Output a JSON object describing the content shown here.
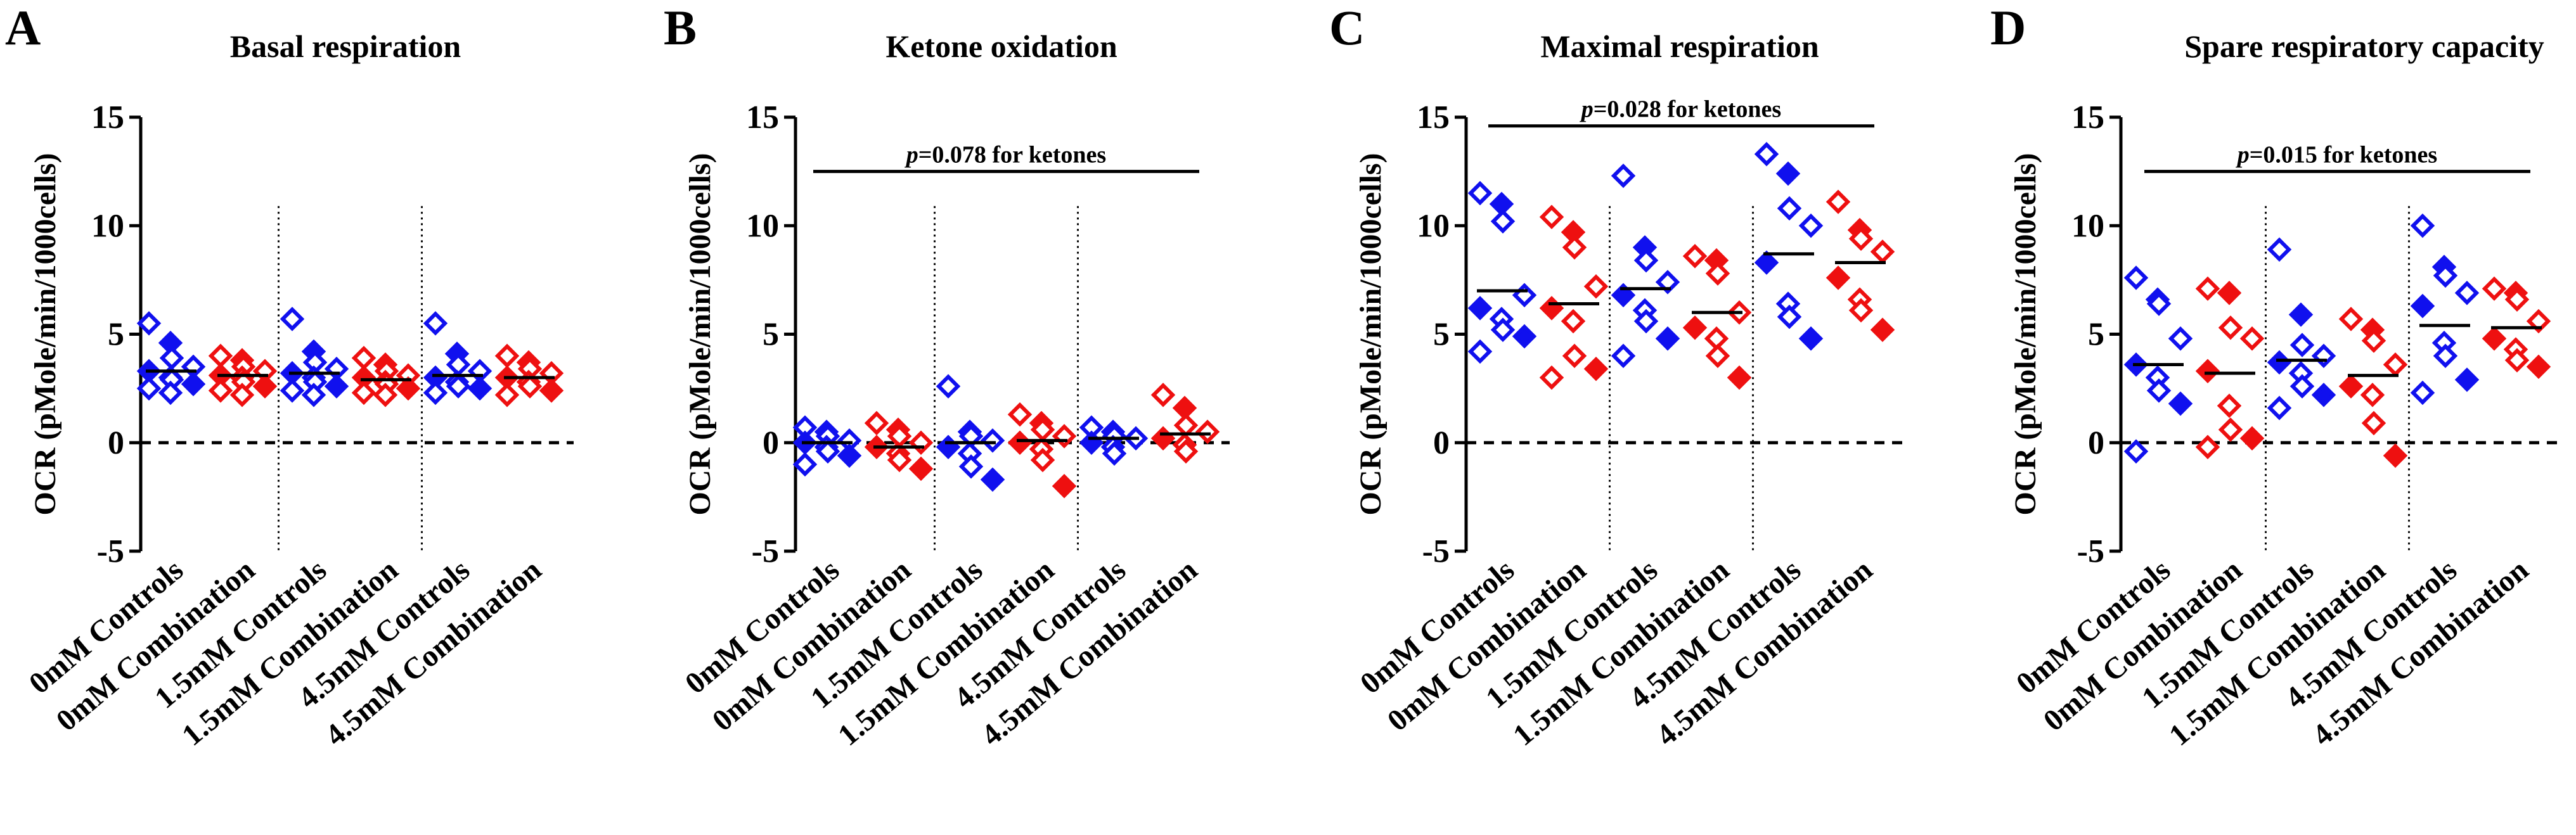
{
  "figure": {
    "panel_letters": [
      "A",
      "B",
      "C",
      "D"
    ],
    "colors": {
      "controls": "#1010ee",
      "combination": "#ee1010",
      "axis": "#000000"
    }
  },
  "chart_data": [
    {
      "panel": "A",
      "type": "scatter",
      "title": "Basal respiration",
      "ylabel": "OCR (pMole/min/1000cells)",
      "ylim": [
        -5,
        15
      ],
      "yticks": [
        -5,
        0,
        5,
        10,
        15
      ],
      "categories": [
        "0mM Controls",
        "0mM Combination",
        "1.5mM Controls",
        "1.5mM Combination",
        "4.5mM Controls",
        "4.5mM Combination"
      ],
      "group_colors": [
        "controls",
        "combination",
        "controls",
        "combination",
        "controls",
        "combination"
      ],
      "means": [
        3.3,
        3.1,
        3.2,
        2.9,
        3.1,
        3.0
      ],
      "points": [
        [
          5.5,
          4.6,
          3.9,
          3.5,
          3.3,
          3.0,
          2.9,
          2.7,
          2.5,
          2.3
        ],
        [
          4.0,
          3.8,
          3.5,
          3.3,
          3.1,
          3.0,
          2.8,
          2.6,
          2.4,
          2.2
        ],
        [
          5.7,
          4.2,
          3.7,
          3.4,
          3.2,
          3.0,
          2.8,
          2.6,
          2.4,
          2.2
        ],
        [
          3.9,
          3.6,
          3.3,
          3.1,
          3.0,
          2.8,
          2.7,
          2.5,
          2.3,
          2.2
        ],
        [
          5.5,
          4.1,
          3.6,
          3.3,
          3.0,
          2.8,
          2.6,
          2.5,
          2.3
        ],
        [
          4.0,
          3.7,
          3.4,
          3.2,
          3.0,
          2.8,
          2.6,
          2.4,
          2.2
        ]
      ],
      "significance": null,
      "reference_line": 0
    },
    {
      "panel": "B",
      "type": "scatter",
      "title": "Ketone oxidation",
      "ylabel": "OCR (pMole/min/1000cells)",
      "ylim": [
        -5,
        15
      ],
      "yticks": [
        -5,
        0,
        5,
        10,
        15
      ],
      "categories": [
        "0mM Controls",
        "0mM Combination",
        "1.5mM Controls",
        "1.5mM Combination",
        "4.5mM Controls",
        "4.5mM Combination"
      ],
      "group_colors": [
        "controls",
        "combination",
        "controls",
        "combination",
        "controls",
        "combination"
      ],
      "means": [
        0.0,
        -0.2,
        0.0,
        0.1,
        0.2,
        0.4
      ],
      "points": [
        [
          0.7,
          0.5,
          0.3,
          0.1,
          0.0,
          -0.2,
          -0.4,
          -0.6,
          -1.0
        ],
        [
          0.9,
          0.6,
          0.3,
          0.0,
          -0.2,
          -0.5,
          -0.8,
          -1.2
        ],
        [
          2.6,
          0.5,
          0.3,
          0.1,
          -0.2,
          -0.5,
          -1.1,
          -1.7
        ],
        [
          1.3,
          0.9,
          0.6,
          0.3,
          0.0,
          -0.3,
          -0.8,
          -2.0
        ],
        [
          0.7,
          0.5,
          0.3,
          0.2,
          0.0,
          -0.2,
          -0.5
        ],
        [
          2.2,
          1.6,
          0.8,
          0.5,
          0.2,
          -0.1,
          -0.4
        ]
      ],
      "significance": {
        "label_prefix": "p",
        "label_value": "=0.078 for ketones",
        "from_category": 0,
        "to_category": 5,
        "y": 12.5
      },
      "reference_line": 0
    },
    {
      "panel": "C",
      "type": "scatter",
      "title": "Maximal respiration",
      "ylabel": "OCR (pMole/min/1000cells)",
      "ylim": [
        -5,
        15
      ],
      "yticks": [
        -5,
        0,
        5,
        10,
        15
      ],
      "categories": [
        "0mM Controls",
        "0mM Combination",
        "1.5mM Controls",
        "1.5mM Combination",
        "4.5mM Controls",
        "4.5mM Combination"
      ],
      "group_colors": [
        "controls",
        "combination",
        "controls",
        "combination",
        "controls",
        "combination"
      ],
      "means": [
        7.0,
        6.4,
        7.1,
        6.0,
        8.7,
        8.3
      ],
      "points": [
        [
          11.5,
          11.0,
          10.2,
          6.8,
          6.2,
          5.7,
          5.2,
          4.9,
          4.2
        ],
        [
          10.4,
          9.7,
          9.0,
          7.2,
          6.2,
          5.6,
          4.0,
          3.4,
          3.0
        ],
        [
          12.3,
          9.0,
          8.4,
          7.4,
          6.8,
          6.1,
          5.6,
          4.8,
          4.0
        ],
        [
          8.6,
          8.4,
          7.8,
          6.0,
          5.3,
          4.8,
          4.0,
          3.0
        ],
        [
          13.3,
          12.4,
          10.8,
          10.0,
          8.3,
          6.4,
          5.8,
          4.8
        ],
        [
          11.1,
          9.8,
          9.4,
          8.8,
          7.6,
          6.6,
          6.1,
          5.2
        ]
      ],
      "significance": {
        "label_prefix": "p",
        "label_value": "=0.028 for ketones",
        "from_category": 0,
        "to_category": 5,
        "y": 14.6
      },
      "reference_line": 0
    },
    {
      "panel": "D",
      "type": "scatter",
      "title": "Spare respiratory capacity",
      "ylabel": "OCR (pMole/min/1000cells)",
      "ylim": [
        -5,
        15
      ],
      "yticks": [
        -5,
        0,
        5,
        10,
        15
      ],
      "categories": [
        "0mM Controls",
        "0mM Combination",
        "1.5mM Controls",
        "1.5mM Combination",
        "4.5mM Controls",
        "4.5mM Combination"
      ],
      "group_colors": [
        "controls",
        "combination",
        "controls",
        "combination",
        "controls",
        "combination"
      ],
      "means": [
        3.6,
        3.2,
        3.8,
        3.1,
        5.4,
        5.3
      ],
      "points": [
        [
          7.6,
          6.6,
          6.4,
          4.8,
          3.6,
          3.0,
          2.4,
          1.8,
          -0.4
        ],
        [
          7.1,
          6.9,
          5.3,
          4.8,
          3.3,
          1.7,
          0.6,
          0.2,
          -0.2
        ],
        [
          8.9,
          5.9,
          4.5,
          4.0,
          3.7,
          3.2,
          2.6,
          2.2,
          1.6
        ],
        [
          5.7,
          5.2,
          4.7,
          3.6,
          2.6,
          2.2,
          0.9,
          -0.6
        ],
        [
          10.0,
          8.1,
          7.7,
          6.9,
          6.3,
          4.6,
          4.0,
          2.9,
          2.3
        ],
        [
          7.1,
          6.9,
          6.6,
          5.6,
          4.8,
          4.3,
          3.8,
          3.5
        ]
      ],
      "significance": {
        "label_prefix": "p",
        "label_value": "=0.015 for ketones",
        "from_category": 0,
        "to_category": 5,
        "y": 12.5
      },
      "reference_line": 0
    }
  ]
}
